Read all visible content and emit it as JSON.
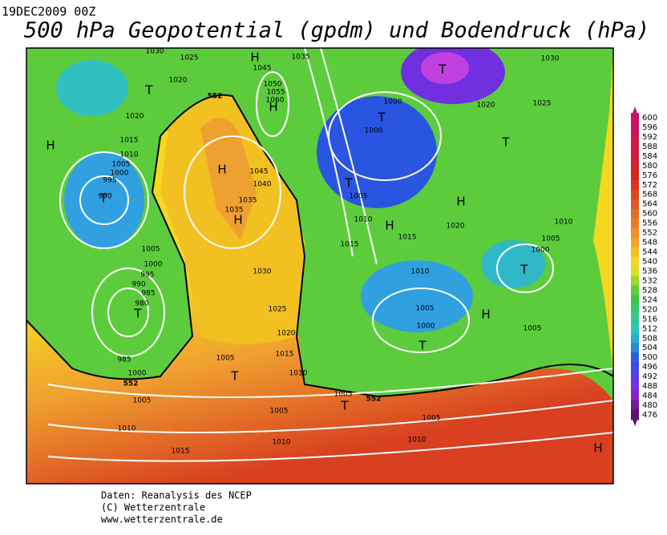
{
  "header": {
    "date": "19DEC2009 00Z",
    "title": "500 hPa Geopotential (gpdm) und Bodendruck (hPa)"
  },
  "map": {
    "pressure_labels": [
      "1030",
      "1025",
      "1035",
      "1045",
      "1020",
      "1050",
      "1055",
      "1060",
      "1020",
      "1015",
      "1010",
      "1005",
      "1000",
      "995",
      "990",
      "1000",
      "1000",
      "1020",
      "1025",
      "1030",
      "1045",
      "1040",
      "1035",
      "1035",
      "1005",
      "1010",
      "1015",
      "1015",
      "1020",
      "1010",
      "1005",
      "1000",
      "1005",
      "1000",
      "995",
      "990",
      "985",
      "980",
      "1030",
      "1010",
      "1025",
      "1005",
      "1000",
      "1020",
      "1015",
      "1005",
      "1010",
      "1005",
      "985",
      "1000",
      "1005",
      "1005",
      "1005",
      "1005",
      "1010",
      "1010",
      "1010",
      "1015"
    ],
    "contour_552_labels": [
      "552",
      "552",
      "552"
    ],
    "centers": [
      "H",
      "T",
      "H",
      "H",
      "T",
      "T",
      "T",
      "H",
      "T",
      "H",
      "T",
      "H",
      "H",
      "T",
      "T",
      "H",
      "T",
      "T",
      "T",
      "H"
    ]
  },
  "colorbar": {
    "labels": [
      "600",
      "596",
      "592",
      "588",
      "584",
      "580",
      "576",
      "572",
      "568",
      "564",
      "560",
      "556",
      "552",
      "548",
      "544",
      "540",
      "536",
      "532",
      "528",
      "524",
      "520",
      "516",
      "512",
      "508",
      "504",
      "500",
      "496",
      "492",
      "488",
      "484",
      "480",
      "476"
    ]
  },
  "footer": {
    "lines": [
      "Daten: Reanalysis des NCEP",
      "(C) Wetterzentrale",
      "www.wetterzentrale.de"
    ]
  }
}
